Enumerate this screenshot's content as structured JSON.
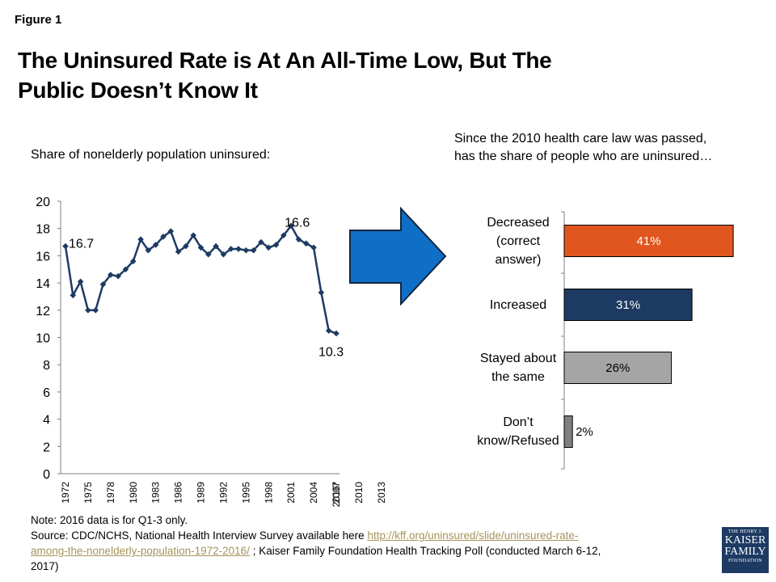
{
  "figure_label": "Figure 1",
  "title_line1": "The Uninsured Rate is At An All-Time Low, But The",
  "title_line2": "Public Doesn’t Know It",
  "left_subtitle": "Share of nonelderly population uninsured:",
  "right_subtitle_line1": "Since the 2010 health care law was passed,",
  "right_subtitle_line2": "has the share of people who are uninsured…",
  "notes": {
    "note": "Note: 2016 data is for Q1-3 only.",
    "source_prefix": "Source: CDC/NCHS, National Health Interview Survey available here ",
    "link_line1": "http://kff.org/uninsured/slide/uninsured-rate-",
    "link_line2": "among-the-nonelderly-population-1972-2016/",
    "source_suffix": " ; Kaiser Family Foundation Health Tracking Poll (conducted March 6-12,",
    "source_year": "2017)"
  },
  "logo": {
    "line1": "THE HENRY J.",
    "line2": "KAISER",
    "line3": "FAMILY",
    "line4": "FOUNDATION"
  },
  "arrow_color": "#0f6fc6",
  "chart_data": [
    {
      "type": "line",
      "ylim": [
        0,
        20
      ],
      "yticks": [
        0,
        2,
        4,
        6,
        8,
        10,
        12,
        14,
        16,
        18,
        20
      ],
      "xtick_labels": [
        "1972",
        "1975",
        "1978",
        "1980",
        "1983",
        "1986",
        "1989",
        "1992",
        "1995",
        "1998",
        "2001",
        "2004",
        "2007",
        "2010",
        "2013",
        "2016*"
      ],
      "color": "#1d3a62",
      "values": [
        16.7,
        13.1,
        14.1,
        12.0,
        12.0,
        13.9,
        14.6,
        14.5,
        15.0,
        15.6,
        17.2,
        16.4,
        16.8,
        17.4,
        17.8,
        16.3,
        16.7,
        17.5,
        16.6,
        16.1,
        16.7,
        16.1,
        16.5,
        16.5,
        16.4,
        16.4,
        17.0,
        16.6,
        16.8,
        17.5,
        18.2,
        17.2,
        16.9,
        16.6,
        13.3,
        10.5,
        10.3
      ],
      "annotations": [
        {
          "index": 0,
          "text": "16.7"
        },
        {
          "index": 33,
          "text": "16.6"
        },
        {
          "index": 36,
          "text": "10.3"
        }
      ]
    },
    {
      "type": "bar",
      "orientation": "horizontal",
      "categories": [
        [
          "Decreased",
          "(correct",
          "answer)"
        ],
        [
          "Increased"
        ],
        [
          "Stayed about",
          "the same"
        ],
        [
          "Don’t",
          "know/Refused"
        ]
      ],
      "values": [
        41,
        31,
        26,
        2
      ],
      "value_labels": [
        "41%",
        "31%",
        "26%",
        "2%"
      ],
      "colors": [
        "#e0561e",
        "#1d3a62",
        "#a5a5a5",
        "#7f7f7f"
      ],
      "label_colors": [
        "#ffffff",
        "#ffffff",
        "#000000",
        "#000000"
      ]
    }
  ]
}
